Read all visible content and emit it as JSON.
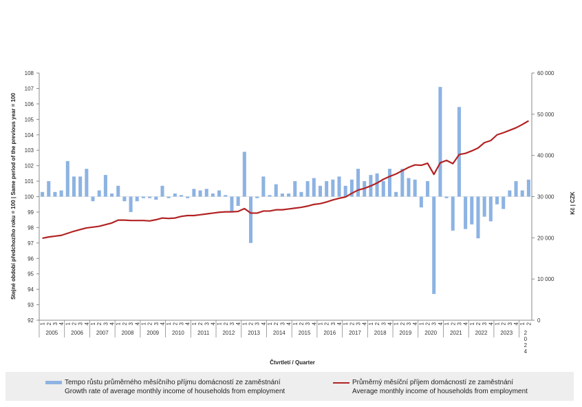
{
  "chart_data": {
    "type": "bar+line",
    "xlabel": "Čtvrtletí / Quarter",
    "ylabel_left": "Stejné období předchozího roku = 100 | Same period of the previous year = 100",
    "ylabel_right": "Kč | CZK",
    "ylim_left": [
      92,
      108
    ],
    "ylim_right": [
      0,
      60000
    ],
    "yticks_left": [
      "92",
      "93",
      "94",
      "95",
      "96",
      "97",
      "98",
      "99",
      "100",
      "101",
      "102",
      "103",
      "104",
      "105",
      "106",
      "107",
      "108"
    ],
    "yticks_right": [
      "0",
      "10 000",
      "20 000",
      "30 000",
      "40 000",
      "50 000",
      "60 000"
    ],
    "quarter_labels": [
      "1",
      "2",
      "3",
      "4"
    ],
    "years": [
      "2005",
      "2006",
      "2007",
      "2008",
      "2009",
      "2010",
      "2011",
      "2012",
      "2013",
      "2014",
      "2015",
      "2016",
      "2017",
      "2018",
      "2019",
      "2020",
      "2021",
      "2022",
      "2023"
    ],
    "last_year_vertical": "2024",
    "grid": false,
    "legend_position": "bottom",
    "series": [
      {
        "name": "Tempo růstu průměrného měsíčního příjmu domácností ze zaměstnání",
        "name_en": "Growth rate of average monthly income of households from employment",
        "type": "bar",
        "axis": "left",
        "color": "#8db3e2",
        "values": [
          100.3,
          101.0,
          100.3,
          100.4,
          102.3,
          101.3,
          101.3,
          101.8,
          99.7,
          100.4,
          101.4,
          100.2,
          100.7,
          99.7,
          99.0,
          99.7,
          99.9,
          99.9,
          99.8,
          100.7,
          99.9,
          100.2,
          100.1,
          99.9,
          100.5,
          100.4,
          100.5,
          100.2,
          100.4,
          100.1,
          99.0,
          99.4,
          102.9,
          97.0,
          99.9,
          101.3,
          100.1,
          100.8,
          100.2,
          100.2,
          101.0,
          100.3,
          101.0,
          101.2,
          100.7,
          101.0,
          101.1,
          101.3,
          100.7,
          101.1,
          101.8,
          101.0,
          101.4,
          101.5,
          101.0,
          101.8,
          100.3,
          101.8,
          101.2,
          101.1,
          99.3,
          101.0,
          93.7,
          107.1,
          99.9,
          97.8,
          105.8,
          97.9,
          98.2,
          97.3,
          98.7,
          98.4,
          99.5,
          99.2,
          100.4,
          101.0,
          100.4,
          101.1
        ]
      },
      {
        "name": "Průměrný měsíční příjem domácností ze zaměstnání",
        "name_en": "Average monthly income of households from employment",
        "type": "line",
        "axis": "right",
        "color": "#b22222",
        "values": [
          19900,
          20200,
          20400,
          20600,
          21100,
          21600,
          22000,
          22400,
          22600,
          22800,
          23200,
          23600,
          24300,
          24300,
          24200,
          24200,
          24200,
          24100,
          24400,
          24800,
          24700,
          24800,
          25200,
          25400,
          25400,
          25600,
          25800,
          26000,
          26200,
          26300,
          26300,
          26400,
          27100,
          26000,
          26000,
          26500,
          26500,
          26800,
          26800,
          27000,
          27200,
          27400,
          27700,
          28100,
          28300,
          28700,
          29200,
          29600,
          29900,
          30800,
          31600,
          32000,
          32600,
          33300,
          34200,
          34900,
          35500,
          36300,
          37100,
          37700,
          37600,
          38100,
          35400,
          38200,
          38800,
          38000,
          40200,
          40500,
          41100,
          41800,
          43100,
          43600,
          45000,
          45500,
          46100,
          46700,
          47500,
          48400
        ]
      }
    ]
  },
  "legend": {
    "bar_label_cz": "Tempo růstu průměrného měsíčního příjmu domácností ze zaměstnání",
    "bar_label_en": "Growth rate of average monthly income of households from employment",
    "line_label_cz": "Průměrný měsíční příjem domácností ze zaměstnání",
    "line_label_en": "Average monthly income of households from employment"
  },
  "colors": {
    "bar": "#8db3e2",
    "line": "#b22222",
    "axis": "#888888"
  }
}
